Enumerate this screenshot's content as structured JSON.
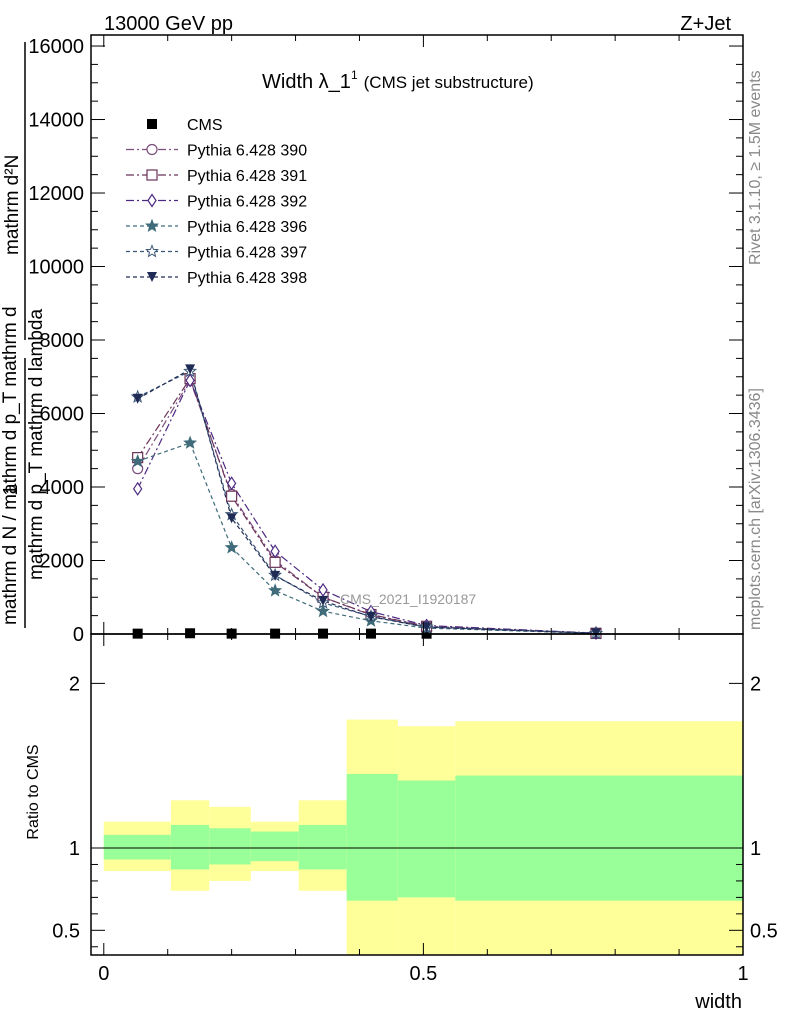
{
  "header": {
    "left": "13000 GeV pp",
    "right": "Z+Jet"
  },
  "side": {
    "rivet": "Rivet 3.1.10, ≥ 1.5M events",
    "mcplots": "mcplots.cern.ch [arXiv:1306.3436]"
  },
  "colors": {
    "band_outer": "#ffff99",
    "band_inner": "#99ff99"
  },
  "chart_data": [
    {
      "type": "line",
      "title": "Width λ_1",
      "title_superscript": "1",
      "subtitle": "(CMS jet substructure)",
      "watermark": "CMS_2021_I1920187",
      "ylabel_numerator_top": "mathrm d²N",
      "ylabel_denominator_top": "mathrm d p_T mathrm d lambda",
      "ylabel_one": "1",
      "ylabel_denominator_bottom": "mathrm d N / mathrm d p_T mathrm d",
      "ylim": [
        0,
        16300
      ],
      "xlim": [
        -0.02,
        1.0
      ],
      "yticks": [
        0,
        2000,
        4000,
        6000,
        8000,
        10000,
        12000,
        14000,
        16000
      ],
      "ytick_labels": [
        "0",
        "2000",
        "4000",
        "6000",
        "8000",
        "10000",
        "12000",
        "14000",
        "16000"
      ],
      "x": [
        0.053,
        0.135,
        0.2,
        0.268,
        0.343,
        0.418,
        0.505,
        0.77
      ],
      "series": [
        {
          "name": "CMS",
          "color": "#000000",
          "marker": "square-filled",
          "dash": "none",
          "values": [
            10,
            20,
            10,
            10,
            10,
            10,
            8,
            2
          ]
        },
        {
          "name": "Pythia 6.428 390",
          "color": "#7d4e7d",
          "marker": "circle-open",
          "dash": "8,3,2,3",
          "values": [
            4500,
            6900,
            3800,
            2000,
            1000,
            520,
            200,
            20
          ]
        },
        {
          "name": "Pythia 6.428 391",
          "color": "#6b3358",
          "marker": "square-open",
          "dash": "8,3,2,3",
          "values": [
            4800,
            6950,
            3750,
            1950,
            1000,
            530,
            210,
            20
          ]
        },
        {
          "name": "Pythia 6.428 392",
          "color": "#4d2a82",
          "marker": "diamond-open",
          "dash": "8,3,2,3",
          "values": [
            3950,
            6900,
            4100,
            2250,
            1200,
            610,
            230,
            25
          ]
        },
        {
          "name": "Pythia 6.428 396",
          "color": "#3f6b7a",
          "marker": "star-filled",
          "dash": "4,3",
          "values": [
            4700,
            5200,
            2350,
            1180,
            620,
            360,
            160,
            15
          ]
        },
        {
          "name": "Pythia 6.428 397",
          "color": "#3a5777",
          "marker": "star-open",
          "dash": "4,3",
          "values": [
            6450,
            7150,
            3250,
            1600,
            850,
            480,
            190,
            18
          ]
        },
        {
          "name": "Pythia 6.428 398",
          "color": "#1f2a55",
          "marker": "triangle-down-filled",
          "dash": "4,3",
          "values": [
            6400,
            7200,
            3150,
            1580,
            900,
            470,
            185,
            18
          ]
        }
      ]
    },
    {
      "type": "area",
      "ylabel": "Ratio to CMS",
      "xlabel": "width",
      "ylim": [
        0.35,
        2.3
      ],
      "xlim": [
        -0.02,
        1.0
      ],
      "yticks": [
        0.5,
        1,
        2
      ],
      "ytick_labels": [
        "0.5",
        "1",
        "2"
      ],
      "xticks": [
        0,
        0.5,
        1
      ],
      "xtick_labels": [
        "0",
        "0.5",
        "1"
      ],
      "reference": 1,
      "bins": [
        {
          "x0": 0.0,
          "x1": 0.105,
          "inner": [
            0.93,
            1.08
          ],
          "outer": [
            0.86,
            1.16
          ]
        },
        {
          "x0": 0.105,
          "x1": 0.165,
          "inner": [
            0.87,
            1.14
          ],
          "outer": [
            0.74,
            1.29
          ]
        },
        {
          "x0": 0.165,
          "x1": 0.23,
          "inner": [
            0.9,
            1.12
          ],
          "outer": [
            0.8,
            1.25
          ]
        },
        {
          "x0": 0.23,
          "x1": 0.305,
          "inner": [
            0.92,
            1.1
          ],
          "outer": [
            0.86,
            1.16
          ]
        },
        {
          "x0": 0.305,
          "x1": 0.38,
          "inner": [
            0.87,
            1.14
          ],
          "outer": [
            0.74,
            1.29
          ]
        },
        {
          "x0": 0.38,
          "x1": 0.46,
          "inner": [
            0.68,
            1.45
          ],
          "outer": [
            0.35,
            1.78
          ]
        },
        {
          "x0": 0.46,
          "x1": 0.55,
          "inner": [
            0.7,
            1.41
          ],
          "outer": [
            0.35,
            1.74
          ]
        },
        {
          "x0": 0.55,
          "x1": 1.0,
          "inner": [
            0.68,
            1.44
          ],
          "outer": [
            0.35,
            1.77
          ]
        }
      ]
    }
  ]
}
